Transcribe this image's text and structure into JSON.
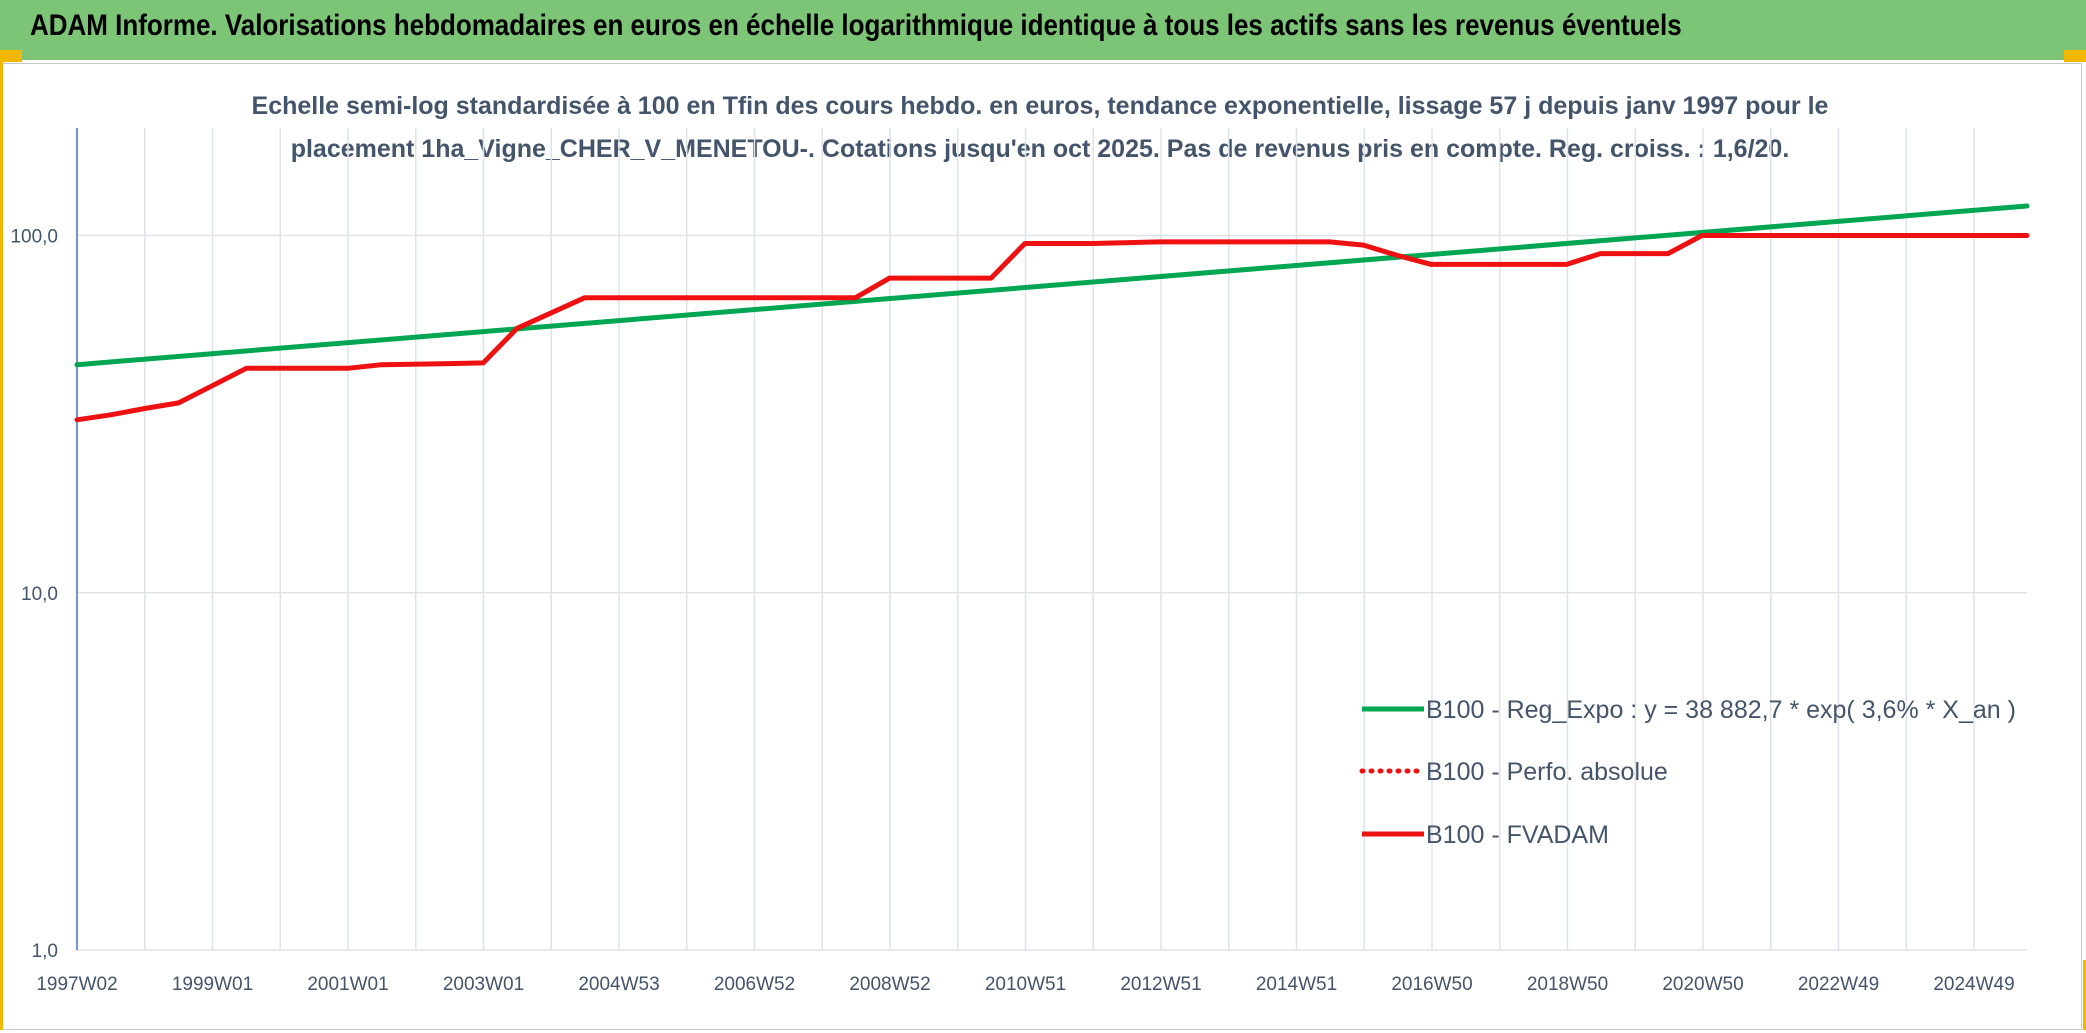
{
  "header": {
    "title": "ADAM Informe. Valorisations hebdomadaires en euros en échelle logarithmique identique à tous les actifs sans les revenus éventuels"
  },
  "colors": {
    "banner": "#7cc576",
    "accent": "#f2b800",
    "trend": "#00a651",
    "fvadam": "#ee1111",
    "perfo": "#ee1111",
    "subtitle": "#44546a",
    "grid": "#dfe3e8"
  },
  "chart_data": {
    "type": "line",
    "scale": "log",
    "title_lines": [
      "Echelle semi-log standardisée à 100 en Tfin des cours hebdo. en euros, tendance exponentielle, lissage 57 j depuis janv 1997 pour le",
      "placement 1ha_Vigne_CHER_V_MENETOU-. Cotations jusqu'en oct 2025. Pas de revenus pris en compte. Reg. croiss. : 1,6/20."
    ],
    "y_ticks": [
      "1,0",
      "10,0",
      "100,0"
    ],
    "ylim": [
      1,
      200
    ],
    "x_ticks": [
      "1997W02",
      "1999W01",
      "2001W01",
      "2003W01",
      "2004W53",
      "2006W52",
      "2008W52",
      "2010W51",
      "2012W51",
      "2014W51",
      "2016W50",
      "2018W50",
      "2020W50",
      "2022W49",
      "2024W49"
    ],
    "xlim": [
      1997.0,
      2025.8
    ],
    "legend": [
      {
        "label": "B100 - Reg_Expo : y = 38 882,7 * exp( 3,6% *  X_an )",
        "style": "solid",
        "series": "trend"
      },
      {
        "label": "B100 - Perfo. absolue",
        "style": "dotted",
        "series": "perfo"
      },
      {
        "label": "B100 - FVADAM",
        "style": "solid",
        "series": "fvadam"
      }
    ],
    "legend_position": "bottom-right",
    "series": [
      {
        "name": "B100 - Reg_Expo",
        "x": [
          1997.0,
          2025.8
        ],
        "y": [
          43.5,
          121
        ]
      },
      {
        "name": "B100 - FVADAM",
        "x": [
          1997.0,
          1997.5,
          1998.0,
          1998.5,
          1999.0,
          1999.5,
          2000.5,
          2001.0,
          2001.5,
          2002.5,
          2003.0,
          2003.5,
          2004.5,
          2005.5,
          2006.5,
          2007.5,
          2008.5,
          2009.0,
          2009.5,
          2010.5,
          2011.0,
          2011.5,
          2012.0,
          2013.0,
          2014.0,
          2014.8,
          2015.2,
          2015.5,
          2016.0,
          2016.5,
          2017.0,
          2017.5,
          2018.0,
          2018.5,
          2019.0,
          2019.5,
          2020.0,
          2020.5,
          2021.0,
          2021.5,
          2022.0,
          2022.5,
          2023.0,
          2024.0,
          2025.0,
          2025.8
        ],
        "y": [
          30.5,
          31.5,
          32.8,
          34,
          38,
          42.5,
          42.5,
          42.5,
          43.5,
          43.8,
          44,
          55,
          67,
          67,
          67,
          67,
          67,
          76,
          76,
          76,
          95,
          95,
          95,
          96,
          96,
          96,
          96,
          96,
          94,
          88,
          83,
          83,
          83,
          83,
          83,
          89,
          89,
          89,
          100,
          100,
          100,
          100,
          100,
          100,
          100,
          100
        ]
      },
      {
        "name": "B100 - Perfo. absolue",
        "x": [],
        "y": []
      }
    ]
  }
}
